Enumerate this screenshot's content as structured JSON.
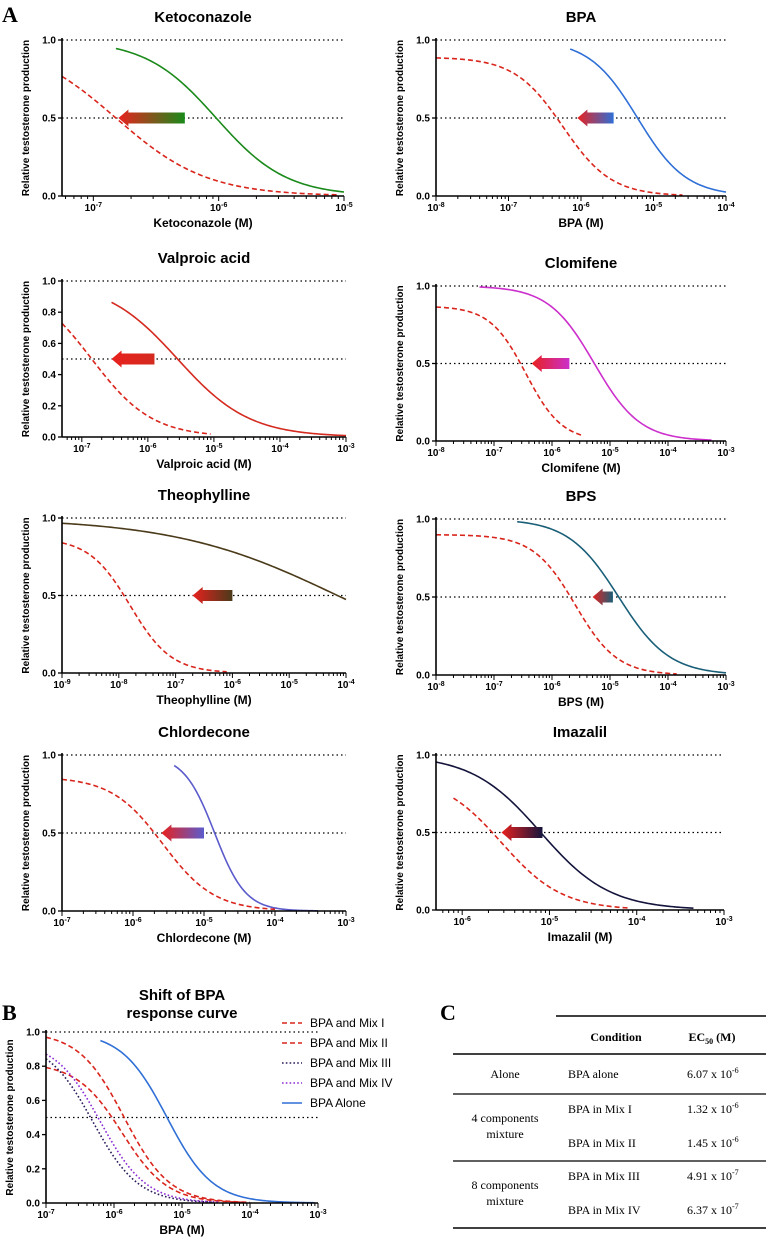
{
  "panel_labels": {
    "a": "A",
    "b": "B",
    "c": "C"
  },
  "colors": {
    "mix": "#d9251c",
    "arrow_head": "#e8211e"
  },
  "chart_data": [
    {
      "type": "line",
      "title": "Ketoconazole",
      "xlabel": "Ketoconazole (M)",
      "ylabel": "Relative testosterone production",
      "xlim_log10": [
        -7.25,
        -5
      ],
      "ylim": [
        0,
        1
      ],
      "yticks": [
        "0.0",
        "0.5",
        "1.0"
      ],
      "xticks": [
        {
          "exp": -7,
          "label": "10-7"
        },
        {
          "exp": -6,
          "label": "10-6"
        },
        {
          "exp": -5,
          "label": "10-5"
        }
      ],
      "ref_lines": [
        0.5,
        1.0
      ],
      "series": [
        {
          "name": "Ketoconazole alone",
          "color": "#1a8a1a",
          "style": "solid",
          "top": 1,
          "log_ec50": -6.02,
          "hill": 1.55,
          "x_range": [
            -6.82,
            -5
          ]
        },
        {
          "name": "Mixture",
          "color": "#d9251c",
          "style": "dashed",
          "top": 1,
          "log_ec50": -6.82,
          "hill": 1.2,
          "x_range": [
            -7.25,
            -5.05
          ]
        }
      ],
      "arrow": {
        "y": 0.5,
        "from": -6.27,
        "to": -6.8,
        "tail_color": "#1a8a1a"
      }
    },
    {
      "type": "line",
      "title": "BPA",
      "xlabel": "BPA (M)",
      "ylabel": "Relative testosterone production",
      "xlim_log10": [
        -8,
        -4
      ],
      "ylim": [
        0,
        1
      ],
      "yticks": [
        "0.0",
        "0.5",
        "1.0"
      ],
      "xticks": [
        {
          "exp": -8,
          "label": "10-8"
        },
        {
          "exp": -7,
          "label": "10-7"
        },
        {
          "exp": -6,
          "label": "10-6"
        },
        {
          "exp": -5,
          "label": "10-5"
        },
        {
          "exp": -4,
          "label": "10-4"
        }
      ],
      "ref_lines": [
        0.5,
        1.0
      ],
      "series": [
        {
          "name": "BPA alone",
          "color": "#2f6fd6",
          "style": "solid",
          "top": 1,
          "log_ec50": -5.22,
          "hill": 1.3,
          "x_range": [
            -6.15,
            -4
          ]
        },
        {
          "name": "Mixture",
          "color": "#d9251c",
          "style": "dashed",
          "top": 0.89,
          "log_ec50": -6.25,
          "hill": 1.3,
          "x_range": [
            -8,
            -4.6
          ]
        }
      ],
      "arrow": {
        "y": 0.5,
        "from": -5.55,
        "to": -6.05,
        "tail_color": "#2f6fd6"
      }
    },
    {
      "type": "line",
      "title": "Valproic acid",
      "xlabel": "Valproic acid (M)",
      "ylabel": "Relative testosterone production",
      "xlim_log10": [
        -7.3,
        -3
      ],
      "ylim": [
        0,
        1
      ],
      "yticks": [
        "0.0",
        "0.2",
        "0.4",
        "0.6",
        "0.8",
        "1.0"
      ],
      "xticks": [
        {
          "exp": -7,
          "label": "10-7"
        },
        {
          "exp": -6,
          "label": "10-6"
        },
        {
          "exp": -5,
          "label": "10-5"
        },
        {
          "exp": -4,
          "label": "10-4"
        },
        {
          "exp": -3,
          "label": "10-3"
        }
      ],
      "ref_lines": [
        0.5,
        1.0
      ],
      "series": [
        {
          "name": "Valproic acid alone",
          "color": "#d42a1f",
          "style": "solid",
          "top": 1,
          "log_ec50": -5.55,
          "hill": 0.8,
          "x_range": [
            -6.55,
            -3
          ]
        },
        {
          "name": "Mixture",
          "color": "#d9251c",
          "style": "dashed",
          "top": 1,
          "log_ec50": -6.85,
          "hill": 0.95,
          "x_range": [
            -7.3,
            -5.05
          ]
        }
      ],
      "arrow": {
        "y": 0.5,
        "from": -5.9,
        "to": -6.55,
        "tail_color": "#d42a1f"
      }
    },
    {
      "type": "line",
      "title": "Clomifene",
      "xlabel": "Clomifene (M)",
      "ylabel": "Relative testosterone production",
      "xlim_log10": [
        -8,
        -3
      ],
      "ylim": [
        0,
        1
      ],
      "yticks": [
        "0.0",
        "0.5",
        "1.0"
      ],
      "xticks": [
        {
          "exp": -8,
          "label": "10-8"
        },
        {
          "exp": -7,
          "label": "10-7"
        },
        {
          "exp": -6,
          "label": "10-6"
        },
        {
          "exp": -5,
          "label": "10-5"
        },
        {
          "exp": -4,
          "label": "10-4"
        },
        {
          "exp": -3,
          "label": "10-3"
        }
      ],
      "ref_lines": [
        0.5,
        1.0
      ],
      "series": [
        {
          "name": "Clomifene alone",
          "color": "#cc2fcc",
          "style": "solid",
          "top": 1,
          "log_ec50": -5.27,
          "hill": 1.1,
          "x_range": [
            -7.25,
            -3.25
          ]
        },
        {
          "name": "Mixture",
          "color": "#d9251c",
          "style": "dashed",
          "top": 0.87,
          "log_ec50": -6.45,
          "hill": 1.4,
          "x_range": [
            -8,
            -5.5
          ]
        }
      ],
      "arrow": {
        "y": 0.5,
        "from": -5.7,
        "to": -6.35,
        "tail_color": "#cc2fcc"
      }
    },
    {
      "type": "line",
      "title": "Theophylline",
      "xlabel": "Theophylline (M)",
      "ylabel": "Relative testosterone production",
      "xlim_log10": [
        -9,
        -4
      ],
      "ylim": [
        0,
        1
      ],
      "yticks": [
        "0.0",
        "0.5",
        "1.0"
      ],
      "xticks": [
        {
          "exp": -9,
          "label": "10-9"
        },
        {
          "exp": -8,
          "label": "10-8"
        },
        {
          "exp": -7,
          "label": "10-7"
        },
        {
          "exp": -6,
          "label": "10-6"
        },
        {
          "exp": -5,
          "label": "10-5"
        },
        {
          "exp": -4,
          "label": "10-4"
        }
      ],
      "ref_lines": [
        0.5,
        1.0
      ],
      "series": [
        {
          "name": "Theophylline alone",
          "color": "#4a3a1a",
          "style": "solid",
          "top": 1,
          "log_ec50": -4.15,
          "hill": 0.3,
          "x_range": [
            -9,
            -4
          ]
        },
        {
          "name": "Mixture",
          "color": "#d9251c",
          "style": "dashed",
          "top": 0.87,
          "log_ec50": -7.8,
          "hill": 1.2,
          "x_range": [
            -9,
            -6.1
          ]
        }
      ],
      "arrow": {
        "y": 0.5,
        "from": -6.0,
        "to": -6.7,
        "tail_color": "#4a3a1a"
      }
    },
    {
      "type": "line",
      "title": "BPS",
      "xlabel": "BPS (M)",
      "ylabel": "Relative testosterone production",
      "xlim_log10": [
        -8,
        -3
      ],
      "ylim": [
        0,
        1
      ],
      "yticks": [
        "0.0",
        "0.5",
        "1.0"
      ],
      "xticks": [
        {
          "exp": -8,
          "label": "10-8"
        },
        {
          "exp": -7,
          "label": "10-7"
        },
        {
          "exp": -6,
          "label": "10-6"
        },
        {
          "exp": -5,
          "label": "10-5"
        },
        {
          "exp": -4,
          "label": "10-4"
        },
        {
          "exp": -3,
          "label": "10-3"
        }
      ],
      "ref_lines": [
        0.5,
        1.0
      ],
      "series": [
        {
          "name": "BPS alone",
          "color": "#1a5f78",
          "style": "solid",
          "top": 1,
          "log_ec50": -4.85,
          "hill": 1.0,
          "x_range": [
            -6.6,
            -3
          ]
        },
        {
          "name": "Mixture",
          "color": "#d9251c",
          "style": "dashed",
          "top": 0.9,
          "log_ec50": -5.6,
          "hill": 1.2,
          "x_range": [
            -8,
            -3.85
          ]
        }
      ],
      "arrow": {
        "y": 0.5,
        "from": -4.95,
        "to": -5.3,
        "tail_color": "#1a5f78"
      }
    },
    {
      "type": "line",
      "title": "Chlordecone",
      "xlabel": "Chlordecone (M)",
      "ylabel": "Relative testosterone production",
      "xlim_log10": [
        -7,
        -3
      ],
      "ylim": [
        0,
        1
      ],
      "yticks": [
        "0.0",
        "0.5",
        "1.0"
      ],
      "xticks": [
        {
          "exp": -7,
          "label": "10-7"
        },
        {
          "exp": -6,
          "label": "10-6"
        },
        {
          "exp": -5,
          "label": "10-5"
        },
        {
          "exp": -4,
          "label": "10-4"
        },
        {
          "exp": -3,
          "label": "10-3"
        }
      ],
      "ref_lines": [
        0.5,
        1.0
      ],
      "series": [
        {
          "name": "Chlordecone alone",
          "color": "#5b5bcc",
          "style": "solid",
          "top": 1,
          "log_ec50": -4.85,
          "hill": 2.0,
          "x_range": [
            -5.42,
            -3.4
          ]
        },
        {
          "name": "Mixture",
          "color": "#d9251c",
          "style": "dashed",
          "top": 0.86,
          "log_ec50": -5.58,
          "hill": 1.2,
          "x_range": [
            -7,
            -4
          ]
        }
      ],
      "arrow": {
        "y": 0.5,
        "from": -5.0,
        "to": -5.6,
        "tail_color": "#5b5bcc"
      }
    },
    {
      "type": "line",
      "title": "Imazalil",
      "xlabel": "Imazalil (M)",
      "ylabel": "Relative testosterone production",
      "xlim_log10": [
        -6.3,
        -3
      ],
      "ylim": [
        0,
        1
      ],
      "yticks": [
        "0.0",
        "0.5",
        "1.0"
      ],
      "xticks": [
        {
          "exp": -6,
          "label": "10-6"
        },
        {
          "exp": -5,
          "label": "10-5"
        },
        {
          "exp": -4,
          "label": "10-4"
        },
        {
          "exp": -3,
          "label": "10-3"
        }
      ],
      "ref_lines": [
        0.5,
        1.0
      ],
      "series": [
        {
          "name": "Imazalil alone",
          "color": "#14143c",
          "style": "solid",
          "top": 1,
          "log_ec50": -5.1,
          "hill": 1.1,
          "x_range": [
            -6.3,
            -3.35
          ]
        },
        {
          "name": "Mixture",
          "color": "#d9251c",
          "style": "dashed",
          "top": 0.87,
          "log_ec50": -5.55,
          "hill": 1.25,
          "x_range": [
            -6.1,
            -4.1
          ]
        }
      ],
      "arrow": {
        "y": 0.5,
        "from": -5.08,
        "to": -5.55,
        "tail_color": "#14143c"
      }
    },
    {
      "type": "line",
      "title": "Shift of BPA response curve",
      "title_lines": [
        "Shift of BPA",
        "response curve"
      ],
      "xlabel": "BPA (M)",
      "ylabel": "Relative testosterone production",
      "xlim_log10": [
        -7,
        -3
      ],
      "ylim": [
        0,
        1
      ],
      "yticks": [
        "0.0",
        "0.2",
        "0.4",
        "0.6",
        "0.8",
        "1.0"
      ],
      "xticks": [
        {
          "exp": -7,
          "label": "10-7"
        },
        {
          "exp": -6,
          "label": "10-6"
        },
        {
          "exp": -5,
          "label": "10-5"
        },
        {
          "exp": -4,
          "label": "10-4"
        },
        {
          "exp": -3,
          "label": "10-3"
        }
      ],
      "ref_lines": [
        0.5,
        1.0
      ],
      "series": [
        {
          "name": "BPA and Mix I",
          "color": "#d9251c",
          "style": "dashed",
          "top": 0.82,
          "log_ec50": -5.88,
          "hill": 1.3,
          "x_range": [
            -7,
            -4.1
          ]
        },
        {
          "name": "BPA and Mix II",
          "color": "#d9251c",
          "style": "dashed",
          "top": 1.0,
          "log_ec50": -5.85,
          "hill": 1.3,
          "x_range": [
            -7,
            -4.0
          ]
        },
        {
          "name": "BPA and Mix III",
          "color": "#2a1a5a",
          "style": "dotted",
          "top": 0.95,
          "log_ec50": -6.31,
          "hill": 1.3,
          "x_range": [
            -7,
            -4.55
          ]
        },
        {
          "name": "BPA and Mix IV",
          "color": "#8a2ad4",
          "style": "dotted",
          "top": 0.95,
          "log_ec50": -6.2,
          "hill": 1.3,
          "x_range": [
            -7,
            -4.45
          ]
        },
        {
          "name": "BPA Alone",
          "color": "#2f6fd6",
          "style": "solid",
          "top": 1,
          "log_ec50": -5.22,
          "hill": 1.3,
          "x_range": [
            -6.2,
            -3.05
          ]
        }
      ]
    }
  ],
  "legend": [
    "BPA and Mix I",
    "BPA and Mix II",
    "BPA and Mix III",
    "BPA and Mix IV",
    "BPA Alone"
  ],
  "table": {
    "header": {
      "condition": "Condition",
      "ec50_main": "EC",
      "ec50_sub": "50",
      "ec50_unit": "(M)"
    },
    "groups": [
      {
        "label_lines": [
          "Alone"
        ],
        "rows": [
          {
            "condition": "BPA alone",
            "mant": "6.07 x 10",
            "exp": "-6"
          }
        ]
      },
      {
        "label_lines": [
          "4 components",
          "mixture"
        ],
        "rows": [
          {
            "condition": "BPA in Mix I",
            "mant": "1.32 x 10",
            "exp": "-6"
          },
          {
            "condition": "BPA in Mix II",
            "mant": "1.45 x 10",
            "exp": "-6"
          }
        ]
      },
      {
        "label_lines": [
          "8 components",
          "mixture"
        ],
        "rows": [
          {
            "condition": "BPA in Mix III",
            "mant": "4.91 x 10",
            "exp": "-7"
          },
          {
            "condition": "BPA in Mix IV",
            "mant": "6.37 x 10",
            "exp": "-7"
          }
        ]
      }
    ]
  }
}
